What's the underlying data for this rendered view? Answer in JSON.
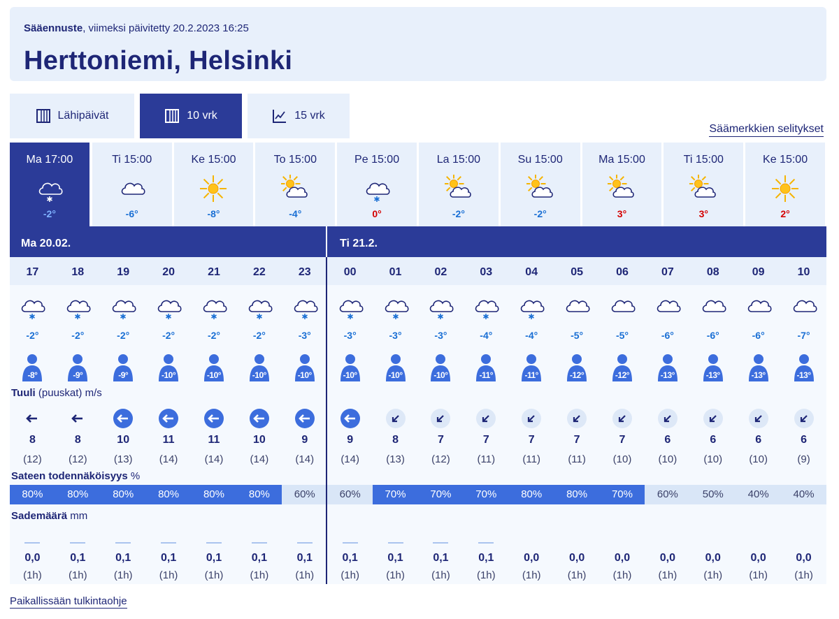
{
  "header": {
    "label_bold": "Sääennuste",
    "label_rest": ", viimeksi päivitetty 20.2.2023 16:25",
    "title": "Herttoniemi, Helsinki"
  },
  "tabs": [
    {
      "label": "Lähipäivät",
      "icon": "table-icon",
      "active": false
    },
    {
      "label": "10 vrk",
      "icon": "table-icon",
      "active": true
    },
    {
      "label": "15 vrk",
      "icon": "line-chart-icon",
      "active": false
    }
  ],
  "legend_link": "Säämerkkien selitykset",
  "colors": {
    "navy": "#1e2676",
    "accent": "#2b3b98",
    "light": "#e8f0fb",
    "warm": "#d40000",
    "cold": "#1a6fd4",
    "precip_high": "#3c6ddd",
    "precip_low": "#d9e6f7",
    "wind_circle": "#3c6ddd",
    "wind_circle_light": "#dde8f7"
  },
  "days": [
    {
      "label": "Ma 17:00",
      "temp": "-2°",
      "icon": "cloud-snow",
      "warm": false
    },
    {
      "label": "Ti 15:00",
      "temp": "-6°",
      "icon": "cloud",
      "warm": false
    },
    {
      "label": "Ke 15:00",
      "temp": "-8°",
      "icon": "sun",
      "warm": false
    },
    {
      "label": "To 15:00",
      "temp": "-4°",
      "icon": "sun-cloud",
      "warm": false
    },
    {
      "label": "Pe 15:00",
      "temp": "0°",
      "icon": "cloud-snow",
      "warm": true
    },
    {
      "label": "La 15:00",
      "temp": "-2°",
      "icon": "sun-cloud",
      "warm": false
    },
    {
      "label": "Su 15:00",
      "temp": "-2°",
      "icon": "sun-cloud",
      "warm": false
    },
    {
      "label": "Ma 15:00",
      "temp": "3°",
      "icon": "sun-cloud",
      "warm": true
    },
    {
      "label": "Ti 15:00",
      "temp": "3°",
      "icon": "sun-cloud-small",
      "warm": true
    },
    {
      "label": "Ke 15:00",
      "temp": "2°",
      "icon": "sun",
      "warm": true
    }
  ],
  "date_band": {
    "first": "Ma  20.02.",
    "second": "Ti 21.2."
  },
  "labels": {
    "wind_bold": "Tuuli",
    "wind_rest": " (puuskat) m/s",
    "precip_prob_bold": "Sateen todennäköisyys",
    "precip_prob_rest": " %",
    "precip_amount_bold": "Sademäärä",
    "precip_amount_rest": " mm"
  },
  "hours": [
    {
      "hour": "17",
      "icon": "cloud-snow",
      "temp": "-2°",
      "feels": "-8°",
      "wind_dir": "left",
      "wind_strong": false,
      "wind": "8",
      "gust": "(12)",
      "prob": "80%",
      "prob_high": true,
      "rain_line": true,
      "amount": "0,0",
      "period": "(1h)"
    },
    {
      "hour": "18",
      "icon": "cloud-snow",
      "temp": "-2°",
      "feels": "-9°",
      "wind_dir": "left",
      "wind_strong": false,
      "wind": "8",
      "gust": "(12)",
      "prob": "80%",
      "prob_high": true,
      "rain_line": true,
      "amount": "0,1",
      "period": "(1h)"
    },
    {
      "hour": "19",
      "icon": "cloud-snow",
      "temp": "-2°",
      "feels": "-9°",
      "wind_dir": "left",
      "wind_strong": true,
      "wind": "10",
      "gust": "(13)",
      "prob": "80%",
      "prob_high": true,
      "rain_line": true,
      "amount": "0,1",
      "period": "(1h)"
    },
    {
      "hour": "20",
      "icon": "cloud-snow",
      "temp": "-2°",
      "feels": "-10°",
      "wind_dir": "left",
      "wind_strong": true,
      "wind": "11",
      "gust": "(14)",
      "prob": "80%",
      "prob_high": true,
      "rain_line": true,
      "amount": "0,1",
      "period": "(1h)"
    },
    {
      "hour": "21",
      "icon": "cloud-snow",
      "temp": "-2°",
      "feels": "-10°",
      "wind_dir": "left",
      "wind_strong": true,
      "wind": "11",
      "gust": "(14)",
      "prob": "80%",
      "prob_high": true,
      "rain_line": true,
      "amount": "0,1",
      "period": "(1h)"
    },
    {
      "hour": "22",
      "icon": "cloud-snow",
      "temp": "-2°",
      "feels": "-10°",
      "wind_dir": "left",
      "wind_strong": true,
      "wind": "10",
      "gust": "(14)",
      "prob": "80%",
      "prob_high": true,
      "rain_line": true,
      "amount": "0,1",
      "period": "(1h)"
    },
    {
      "hour": "23",
      "icon": "cloud-snow",
      "temp": "-3°",
      "feels": "-10°",
      "wind_dir": "left",
      "wind_strong": true,
      "wind": "9",
      "gust": "(14)",
      "prob": "60%",
      "prob_high": false,
      "rain_line": true,
      "amount": "0,1",
      "period": "(1h)"
    },
    {
      "hour": "00",
      "icon": "cloud-snow",
      "temp": "-3°",
      "feels": "-10°",
      "wind_dir": "left",
      "wind_strong": true,
      "wind": "9",
      "gust": "(14)",
      "prob": "60%",
      "prob_high": false,
      "rain_line": true,
      "amount": "0,1",
      "period": "(1h)"
    },
    {
      "hour": "01",
      "icon": "cloud-snow",
      "temp": "-3°",
      "feels": "-10°",
      "wind_dir": "down-left",
      "wind_strong": false,
      "wind": "8",
      "gust": "(13)",
      "prob": "70%",
      "prob_high": true,
      "rain_line": true,
      "amount": "0,1",
      "period": "(1h)"
    },
    {
      "hour": "02",
      "icon": "cloud-snow",
      "temp": "-3°",
      "feels": "-10°",
      "wind_dir": "down-left",
      "wind_strong": false,
      "wind": "7",
      "gust": "(12)",
      "prob": "70%",
      "prob_high": true,
      "rain_line": true,
      "amount": "0,1",
      "period": "(1h)"
    },
    {
      "hour": "03",
      "icon": "cloud-snow",
      "temp": "-4°",
      "feels": "-11°",
      "wind_dir": "down-left",
      "wind_strong": false,
      "wind": "7",
      "gust": "(11)",
      "prob": "70%",
      "prob_high": true,
      "rain_line": true,
      "amount": "0,1",
      "period": "(1h)"
    },
    {
      "hour": "04",
      "icon": "cloud-snow",
      "temp": "-4°",
      "feels": "-11°",
      "wind_dir": "down-left",
      "wind_strong": false,
      "wind": "7",
      "gust": "(11)",
      "prob": "80%",
      "prob_high": true,
      "rain_line": false,
      "amount": "0,0",
      "period": "(1h)"
    },
    {
      "hour": "05",
      "icon": "cloud",
      "temp": "-5°",
      "feels": "-12°",
      "wind_dir": "down-left",
      "wind_strong": false,
      "wind": "7",
      "gust": "(11)",
      "prob": "80%",
      "prob_high": true,
      "rain_line": false,
      "amount": "0,0",
      "period": "(1h)"
    },
    {
      "hour": "06",
      "icon": "cloud",
      "temp": "-5°",
      "feels": "-12°",
      "wind_dir": "down-left",
      "wind_strong": false,
      "wind": "7",
      "gust": "(10)",
      "prob": "70%",
      "prob_high": true,
      "rain_line": false,
      "amount": "0,0",
      "period": "(1h)"
    },
    {
      "hour": "07",
      "icon": "cloud",
      "temp": "-6°",
      "feels": "-13°",
      "wind_dir": "down-left",
      "wind_strong": false,
      "wind": "6",
      "gust": "(10)",
      "prob": "60%",
      "prob_high": false,
      "rain_line": false,
      "amount": "0,0",
      "period": "(1h)"
    },
    {
      "hour": "08",
      "icon": "cloud",
      "temp": "-6°",
      "feels": "-13°",
      "wind_dir": "down-left",
      "wind_strong": false,
      "wind": "6",
      "gust": "(10)",
      "prob": "50%",
      "prob_high": false,
      "rain_line": false,
      "amount": "0,0",
      "period": "(1h)"
    },
    {
      "hour": "09",
      "icon": "cloud",
      "temp": "-6°",
      "feels": "-13°",
      "wind_dir": "down-left",
      "wind_strong": false,
      "wind": "6",
      "gust": "(10)",
      "prob": "40%",
      "prob_high": false,
      "rain_line": false,
      "amount": "0,0",
      "period": "(1h)"
    },
    {
      "hour": "10",
      "icon": "cloud",
      "temp": "-7°",
      "feels": "-13°",
      "wind_dir": "down-left",
      "wind_strong": false,
      "wind": "6",
      "gust": "(9)",
      "prob": "40%",
      "prob_high": false,
      "rain_line": false,
      "amount": "0,0",
      "period": "(1h)"
    }
  ],
  "footer_link": "Paikallissään tulkintaohje"
}
